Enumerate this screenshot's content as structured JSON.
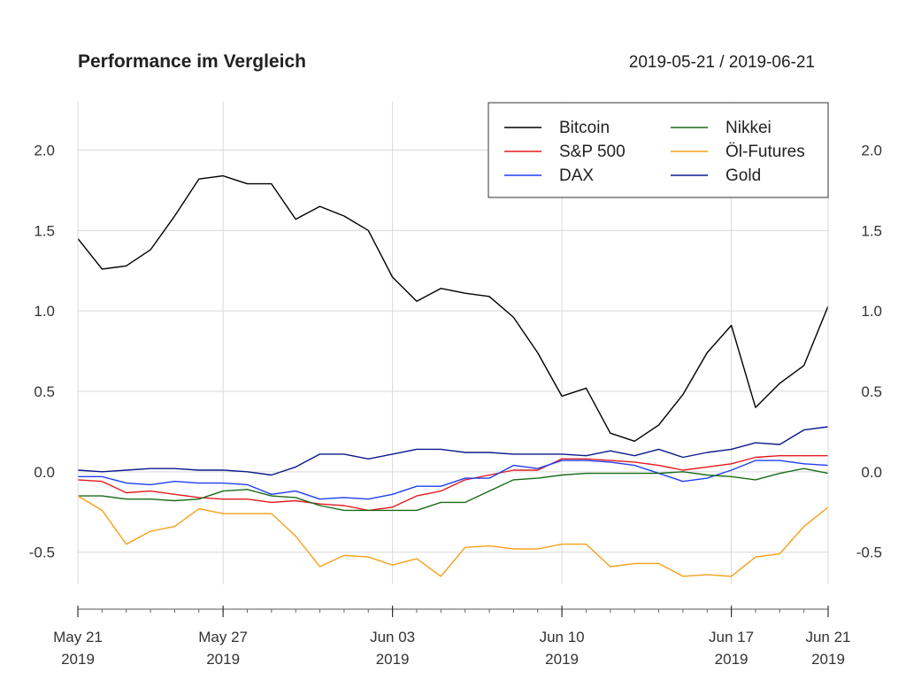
{
  "chart_data": {
    "type": "line",
    "title": "Performance im Vergleich",
    "date_range": "2019-05-21 / 2019-06-21",
    "xlabel": "",
    "ylabel": "",
    "ylim": [
      -0.7,
      2.3
    ],
    "y_ticks": [
      -0.5,
      0.0,
      0.5,
      1.0,
      1.5,
      2.0
    ],
    "y_tick_labels": [
      "-0.5",
      "0.0",
      "0.5",
      "1.0",
      "1.5",
      "2.0"
    ],
    "x_tick_labels": [
      {
        "date": "2019-05-21",
        "line1": "May 21",
        "line2": "2019"
      },
      {
        "date": "2019-05-27",
        "line1": "May 27",
        "line2": "2019"
      },
      {
        "date": "2019-06-03",
        "line1": "Jun 03",
        "line2": "2019"
      },
      {
        "date": "2019-06-10",
        "line1": "Jun 10",
        "line2": "2019"
      },
      {
        "date": "2019-06-17",
        "line1": "Jun 17",
        "line2": "2019"
      },
      {
        "date": "2019-06-21",
        "line1": "Jun 21",
        "line2": "2019"
      }
    ],
    "grid": true,
    "legend_position": "top-right",
    "dates": [
      "2019-05-21",
      "2019-05-22",
      "2019-05-23",
      "2019-05-24",
      "2019-05-25",
      "2019-05-26",
      "2019-05-27",
      "2019-05-28",
      "2019-05-29",
      "2019-05-30",
      "2019-05-31",
      "2019-06-01",
      "2019-06-02",
      "2019-06-03",
      "2019-06-04",
      "2019-06-05",
      "2019-06-06",
      "2019-06-07",
      "2019-06-08",
      "2019-06-09",
      "2019-06-10",
      "2019-06-11",
      "2019-06-12",
      "2019-06-13",
      "2019-06-14",
      "2019-06-15",
      "2019-06-16",
      "2019-06-17",
      "2019-06-18",
      "2019-06-19",
      "2019-06-20",
      "2019-06-21"
    ],
    "series": [
      {
        "name": "Bitcoin",
        "color": "#000000",
        "values": [
          1.45,
          1.26,
          1.28,
          1.38,
          1.59,
          1.82,
          1.84,
          1.79,
          1.79,
          1.57,
          1.65,
          1.59,
          1.5,
          1.21,
          1.06,
          1.14,
          1.11,
          1.09,
          0.96,
          0.74,
          0.47,
          0.52,
          0.24,
          0.19,
          0.29,
          0.48,
          0.74,
          0.91,
          0.4,
          0.55,
          0.66,
          1.03
        ]
      },
      {
        "name": "S&P 500",
        "color": "#e41a1c",
        "values": [
          -0.05,
          -0.06,
          -0.13,
          -0.12,
          -0.14,
          -0.16,
          -0.17,
          -0.17,
          -0.19,
          -0.18,
          -0.2,
          -0.21,
          -0.24,
          -0.22,
          -0.15,
          -0.12,
          -0.05,
          -0.02,
          0.01,
          0.01,
          0.08,
          0.08,
          0.07,
          0.06,
          0.04,
          0.01,
          0.03,
          0.05,
          0.09,
          0.1,
          0.1,
          0.1
        ]
      },
      {
        "name": "DAX",
        "color": "#1f3ff2",
        "values": [
          -0.03,
          -0.03,
          -0.07,
          -0.08,
          -0.06,
          -0.07,
          -0.07,
          -0.08,
          -0.14,
          -0.12,
          -0.17,
          -0.16,
          -0.17,
          -0.14,
          -0.09,
          -0.09,
          -0.04,
          -0.04,
          0.04,
          0.02,
          0.07,
          0.07,
          0.06,
          0.04,
          -0.01,
          -0.06,
          -0.04,
          0.01,
          0.07,
          0.07,
          0.05,
          0.04
        ]
      },
      {
        "name": "Nikkei",
        "color": "#1a6b1a",
        "values": [
          -0.15,
          -0.15,
          -0.17,
          -0.17,
          -0.18,
          -0.17,
          -0.12,
          -0.11,
          -0.15,
          -0.16,
          -0.21,
          -0.24,
          -0.24,
          -0.24,
          -0.24,
          -0.19,
          -0.19,
          -0.12,
          -0.05,
          -0.04,
          -0.02,
          -0.01,
          -0.01,
          -0.01,
          -0.01,
          0.0,
          -0.02,
          -0.03,
          -0.05,
          -0.01,
          0.02,
          -0.01
        ]
      },
      {
        "name": "Öl-Futures",
        "color": "#f5a01a",
        "values": [
          -0.15,
          -0.24,
          -0.45,
          -0.37,
          -0.34,
          -0.23,
          -0.26,
          -0.26,
          -0.26,
          -0.4,
          -0.59,
          -0.52,
          -0.53,
          -0.58,
          -0.54,
          -0.65,
          -0.47,
          -0.46,
          -0.48,
          -0.48,
          -0.45,
          -0.45,
          -0.59,
          -0.57,
          -0.57,
          -0.65,
          -0.64,
          -0.65,
          -0.53,
          -0.51,
          -0.34,
          -0.22
        ]
      },
      {
        "name": "Gold",
        "color": "#0a1a8c",
        "values": [
          0.01,
          0.0,
          0.01,
          0.02,
          0.02,
          0.01,
          0.01,
          0.0,
          -0.02,
          0.03,
          0.11,
          0.11,
          0.08,
          0.11,
          0.14,
          0.14,
          0.12,
          0.12,
          0.11,
          0.11,
          0.11,
          0.1,
          0.13,
          0.1,
          0.14,
          0.09,
          0.12,
          0.14,
          0.18,
          0.17,
          0.26,
          0.28
        ]
      }
    ]
  }
}
